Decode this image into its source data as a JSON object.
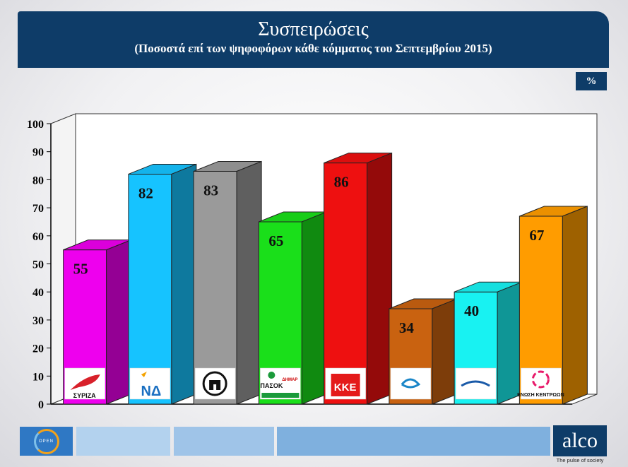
{
  "header": {
    "title": "Συσπειρώσεις",
    "subtitle": "(Ποσοστά επί των ψηφοφόρων κάθε κόμματος του Σεπτεμβρίου 2015)"
  },
  "unit_badge": "%",
  "chart_data": {
    "type": "bar",
    "title": "Συσπειρώσεις",
    "subtitle": "(Ποσοστά επί των ψηφοφόρων κάθε κόμματος του Σεπτεμβρίου 2015)",
    "categories": [
      "ΣΥΡΙΖΑ",
      "ΝΔ",
      "ΧΑ",
      "ΠΑΣΟΚ-ΔΗΜΑΡ",
      "ΚΚΕ",
      "ΤΟ ΠΟΤΑΜΙ",
      "ΑΝΕΞΑΡΤΗΤΟΙ ΕΛΛΗΝΕΣ",
      "ΕΝΩΣΗ ΚΕΝΤΡΩΩΝ"
    ],
    "values": [
      55,
      82,
      83,
      65,
      86,
      34,
      40,
      67
    ],
    "data_labels": [
      "55",
      "82",
      "83",
      "65",
      "86",
      "34",
      "40",
      "67"
    ],
    "colors": [
      "#ee00ee",
      "#16c3ff",
      "#9a9a9a",
      "#1adf1a",
      "#ee1010",
      "#c96210",
      "#18f2f2",
      "#ff9c00"
    ],
    "ylim": [
      0,
      100
    ],
    "yticks": [
      "0",
      "10",
      "20",
      "30",
      "40",
      "50",
      "60",
      "70",
      "80",
      "90",
      "100"
    ],
    "grid": false,
    "style": "3d",
    "logo_labels": {
      "syriza": "ΣΥΡΙΖΑ",
      "nd": "ΝΔ",
      "pasok": "ΠΑΣΟΚ",
      "dimar": "ΔΗΜΑΡ",
      "kke": "ΚΚΕ",
      "enosi": "ΕΝΩΣΗ ΚΕΝΤΡΩΩΝ"
    }
  },
  "footer": {
    "open_logo_text": "OPEN",
    "alco_logo": "alco",
    "alco_tagline": "The pulse of society",
    "bar_colors": [
      "#cde0f2",
      "#b3d2ee",
      "#9fc4e8",
      "#7fb0de"
    ]
  }
}
